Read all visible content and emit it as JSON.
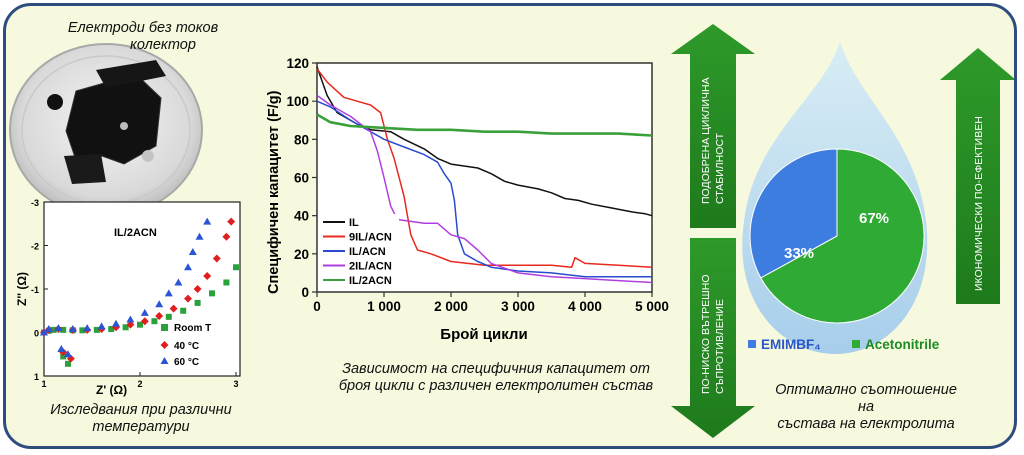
{
  "petri": {
    "caption_line1": "Електроди без токов",
    "caption_line2": "колектор"
  },
  "nyquist": {
    "title": "IL/2ACN",
    "xlabel": "Z' (Ω)",
    "ylabel": "Z'' (Ω)",
    "caption_line1": "Изследвания при различни",
    "caption_line2": "температури",
    "legend": [
      {
        "label": "Room T",
        "color": "#2aa13a"
      },
      {
        "label": "40 °C",
        "color": "#e02020"
      },
      {
        "label": "60 °C",
        "color": "#2a56d6"
      }
    ]
  },
  "chart_data": {
    "type": "line",
    "ylabel": "Специфичен капацитет (F/g)",
    "xlabel": "Брой цикли",
    "xlim": [
      0,
      5000
    ],
    "ylim": [
      0,
      120
    ],
    "xticks": [
      "0",
      "1 000",
      "2 000",
      "3 000",
      "4 000",
      "5 000"
    ],
    "yticks": [
      "0",
      "20",
      "40",
      "60",
      "80",
      "100",
      "120"
    ],
    "legend_position": "bottom-left",
    "series": [
      {
        "name": "IL",
        "color": "#111111",
        "points": [
          [
            0,
            118
          ],
          [
            150,
            103
          ],
          [
            300,
            94
          ],
          [
            600,
            88
          ],
          [
            800,
            85
          ],
          [
            1100,
            84
          ],
          [
            1300,
            80
          ],
          [
            1600,
            75
          ],
          [
            1800,
            70
          ],
          [
            2000,
            67
          ],
          [
            2400,
            65
          ],
          [
            2600,
            62
          ],
          [
            2800,
            58
          ],
          [
            3000,
            56
          ],
          [
            3300,
            54
          ],
          [
            3500,
            52
          ],
          [
            3700,
            49
          ],
          [
            3900,
            48
          ],
          [
            4100,
            46
          ],
          [
            4400,
            44
          ],
          [
            4700,
            42
          ],
          [
            4900,
            41
          ],
          [
            5000,
            40
          ]
        ]
      },
      {
        "name": "9IL/ACN",
        "color": "#e8291e",
        "points": [
          [
            0,
            117
          ],
          [
            150,
            110
          ],
          [
            400,
            102
          ],
          [
            600,
            100
          ],
          [
            800,
            98
          ],
          [
            950,
            94
          ],
          [
            1050,
            80
          ],
          [
            1150,
            70
          ],
          [
            1300,
            50
          ],
          [
            1400,
            30
          ],
          [
            1500,
            22
          ],
          [
            1700,
            20
          ],
          [
            2000,
            16
          ],
          [
            2500,
            14
          ],
          [
            3000,
            14
          ],
          [
            3500,
            14
          ],
          [
            3800,
            13
          ],
          [
            3850,
            18
          ],
          [
            4000,
            15
          ],
          [
            4500,
            14
          ],
          [
            5000,
            13
          ]
        ]
      },
      {
        "name": "IL/ACN",
        "color": "#2a4bd0",
        "points": [
          [
            0,
            100
          ],
          [
            200,
            97
          ],
          [
            500,
            90
          ],
          [
            800,
            84
          ],
          [
            1000,
            80
          ],
          [
            1300,
            76
          ],
          [
            1600,
            72
          ],
          [
            1800,
            68
          ],
          [
            1900,
            62
          ],
          [
            2000,
            57
          ],
          [
            2050,
            48
          ],
          [
            2100,
            30
          ],
          [
            2200,
            20
          ],
          [
            2400,
            16
          ],
          [
            2600,
            13
          ],
          [
            3000,
            11
          ],
          [
            3500,
            10
          ],
          [
            4000,
            8
          ],
          [
            4500,
            8
          ],
          [
            5000,
            8
          ]
        ]
      },
      {
        "name": "2IL/ACN",
        "color": "#b03fe0",
        "points": [
          [
            0,
            103
          ],
          [
            200,
            98
          ],
          [
            500,
            92
          ],
          [
            800,
            84
          ],
          [
            900,
            74
          ],
          [
            1000,
            60
          ],
          [
            1100,
            45
          ],
          [
            1200,
            38
          ],
          [
            1400,
            37
          ],
          [
            1600,
            36
          ],
          [
            1800,
            36
          ],
          [
            2000,
            30
          ],
          [
            2200,
            28
          ],
          [
            2400,
            22
          ],
          [
            2600,
            15
          ],
          [
            3000,
            10
          ],
          [
            3500,
            8
          ],
          [
            4000,
            7
          ],
          [
            4500,
            6
          ],
          [
            5000,
            5
          ]
        ]
      },
      {
        "name": "IL/2ACN",
        "color": "#3aa13a",
        "points": [
          [
            0,
            93
          ],
          [
            200,
            89
          ],
          [
            500,
            87
          ],
          [
            1000,
            86
          ],
          [
            1500,
            85
          ],
          [
            2000,
            85
          ],
          [
            2500,
            84
          ],
          [
            3000,
            84
          ],
          [
            3500,
            83
          ],
          [
            4000,
            83
          ],
          [
            4500,
            83
          ],
          [
            5000,
            82
          ]
        ]
      }
    ]
  },
  "chart_caption": {
    "line1": "Зависимост на специфичния капацитет от",
    "line2": "броя цикли с различен електролитен състав"
  },
  "arrows": {
    "left_up": {
      "line1": "ПОДОБРЕНА ЦИКЛИЧНА",
      "line2": "СТАБИЛНОСТ"
    },
    "left_down": {
      "line1": "ПО-НИСКО ВЪТРЕШНО",
      "line2": "СЪПРОТИВЛЕНИЕ"
    },
    "right_up": {
      "line1": "ИКОНОМИЧЕСКИ ПО-ЕФЕКТИВЕН"
    }
  },
  "pie": {
    "slices": [
      {
        "label": "EMIMBF₄",
        "value": 33,
        "pct_label": "33%",
        "color": "#3d7de0"
      },
      {
        "label": "Acetonitrile",
        "value": 67,
        "pct_label": "67%",
        "color": "#2eaa35"
      }
    ],
    "caption_line1": "Оптимално съотношение на",
    "caption_line2": "състава на електролита"
  }
}
